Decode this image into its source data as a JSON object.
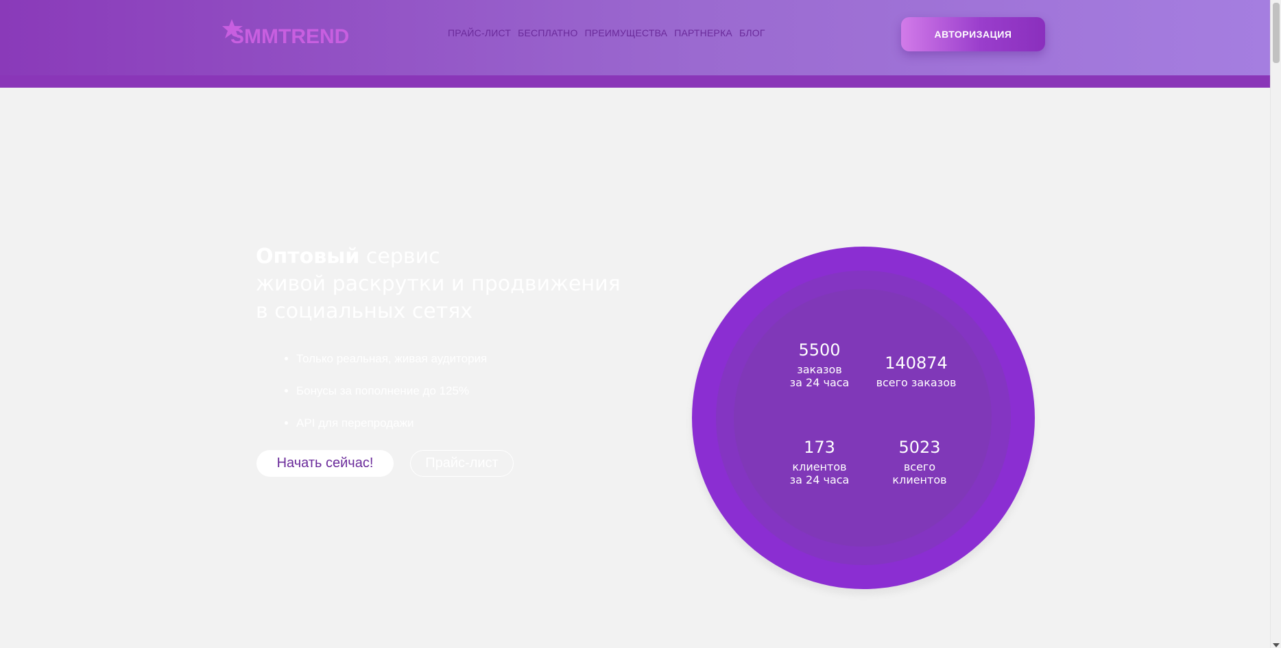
{
  "header": {
    "logo_text": "SMMTREND",
    "nav": [
      {
        "label": "ПРАЙС-ЛИСТ"
      },
      {
        "label": "БЕСПЛАТНО"
      },
      {
        "label": "ПРЕИМУЩЕСТВА"
      },
      {
        "label": "ПАРТНЕРКА"
      },
      {
        "label": "БЛОГ"
      }
    ],
    "auth_label": "АВТОРИЗАЦИЯ"
  },
  "hero": {
    "title_bold": "Оптовый",
    "title_line1_rest": " сервис",
    "title_line2": "живой раскрутки и продвижения",
    "title_line3": "в социальных сетях",
    "bullets": [
      "Только реальная, живая аудитория",
      "Бонусы за пополнение до 125%",
      "API для перепродажи"
    ],
    "start_label": "Начать сейчас!",
    "price_label": "Прайс-лист"
  },
  "stats": {
    "orders_24h": {
      "value": "5500",
      "label_line1": "заказов",
      "label_line2": "за 24 часа"
    },
    "orders_total": {
      "value": "140874",
      "label": "всего заказов"
    },
    "clients_24h": {
      "value": "173",
      "label_line1": "клиентов",
      "label_line2": "за 24 часа"
    },
    "clients_total": {
      "value": "5023",
      "label": "всего клиентов"
    }
  },
  "colors": {
    "header_purple": "#8a36b8",
    "circle_purple": "#8b2ed2",
    "accent_pink": "#c85fe0",
    "background": "#f2f2f2"
  },
  "icons": {
    "logo_icon": "star-icon"
  }
}
